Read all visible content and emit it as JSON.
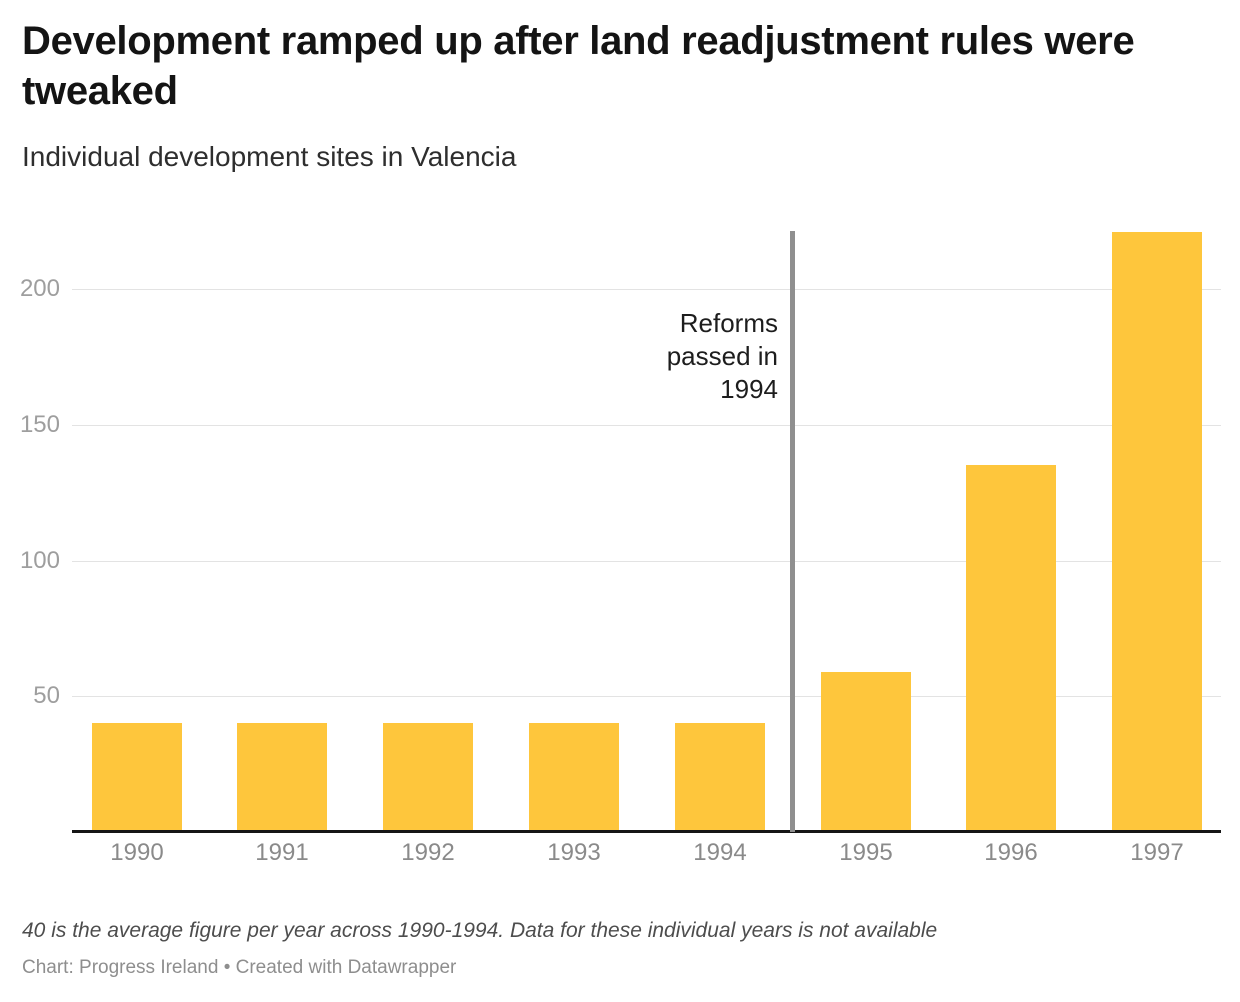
{
  "header": {
    "title_lines": [
      "Development ramped up after land readjustment rules were",
      "tweaked"
    ],
    "subtitle": "Individual development sites in Valencia"
  },
  "chart_data": {
    "type": "bar",
    "title": "Development ramped up after land readjustment rules were tweaked",
    "subtitle": "Individual development sites in Valencia",
    "categories": [
      "1990",
      "1991",
      "1992",
      "1993",
      "1994",
      "1995",
      "1996",
      "1997"
    ],
    "values": [
      40,
      40,
      40,
      40,
      40,
      59,
      135,
      221
    ],
    "xlabel": "",
    "ylabel": "",
    "yticks": [
      50,
      100,
      150,
      200
    ],
    "ylim": [
      0,
      222
    ],
    "grid": "horizontal",
    "legend": "none",
    "bar_color": "#FEC63C",
    "annotation": {
      "text": "Reforms passed in 1994",
      "lines": [
        "Reforms",
        "passed in",
        "1994"
      ],
      "ref_line_between": [
        "1994",
        "1995"
      ],
      "ref_line_color": "#8F8F8F"
    }
  },
  "footer": {
    "note": "40 is the average figure per year across 1990-1994. Data for these individual years is not available",
    "credit": "Chart: Progress Ireland • Created with Datawrapper"
  }
}
